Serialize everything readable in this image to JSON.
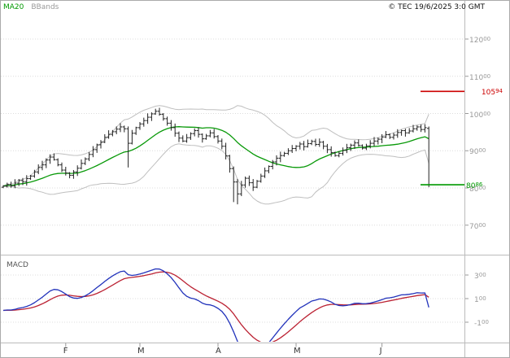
{
  "header": {
    "legend": [
      {
        "label": "MA20",
        "color": "#009900"
      },
      {
        "label": "BBands",
        "color": "#999999"
      }
    ],
    "copyright": "© TEC 19/6/2025 3:0 GMT"
  },
  "chart_data": [
    {
      "type": "candlestick",
      "title": "",
      "ylabel": "price",
      "ylim": [
        68,
        124
      ],
      "grid": true,
      "y_axis_labels": [
        {
          "main": "120",
          "sup": "00",
          "value": 120
        },
        {
          "main": "110",
          "sup": "00",
          "value": 110
        },
        {
          "main": "100",
          "sup": "00",
          "value": 100
        },
        {
          "main": "90",
          "sup": "00",
          "value": 90
        },
        {
          "main": "80",
          "sup": "00",
          "value": 80
        },
        {
          "main": "70",
          "sup": "00",
          "value": 70
        }
      ],
      "x_ticks": [
        {
          "label": "F",
          "index": 16
        },
        {
          "label": "M",
          "index": 35
        },
        {
          "label": "A",
          "index": 55
        },
        {
          "label": "M",
          "index": 75
        },
        {
          "label": "J",
          "index": 97
        }
      ],
      "closes": [
        80.5,
        80.9,
        80.6,
        81.3,
        82.0,
        81.7,
        82.5,
        83.2,
        84.3,
        85.5,
        86.2,
        87.5,
        88.3,
        87.6,
        86.2,
        84.8,
        84.0,
        83.4,
        84.3,
        85.3,
        86.6,
        87.8,
        89.0,
        90.3,
        91.6,
        92.3,
        93.6,
        94.4,
        95.1,
        95.8,
        96.4,
        95.9,
        92.0,
        94.7,
        96.2,
        97.2,
        98.1,
        99.0,
        99.9,
        100.6,
        99.8,
        98.6,
        97.4,
        96.2,
        94.7,
        93.4,
        92.6,
        93.5,
        94.6,
        95.4,
        94.4,
        93.2,
        94.0,
        94.8,
        93.8,
        92.6,
        91.2,
        88.6,
        85.2,
        81.6,
        78.4,
        80.8,
        82.6,
        81.4,
        80.2,
        81.8,
        83.2,
        84.6,
        85.8,
        87.0,
        88.0,
        88.7,
        89.3,
        90.0,
        90.6,
        91.2,
        91.8,
        91.1,
        91.9,
        92.5,
        91.7,
        92.3,
        91.2,
        90.3,
        89.5,
        88.7,
        89.3,
        90.1,
        90.8,
        91.5,
        92.1,
        91.4,
        90.7,
        91.3,
        92.0,
        92.6,
        93.1,
        93.7,
        94.3,
        93.6,
        94.2,
        94.9,
        95.4,
        94.8,
        95.3,
        95.9,
        96.4,
        95.7,
        96.2,
        80.86
      ],
      "overrides": {
        "32": {
          "low": 85.5
        },
        "59": {
          "low": 76.2
        },
        "60": {
          "low": 75.6
        },
        "109": {
          "open": 96.0,
          "high": 96.5,
          "low": 80.2
        }
      },
      "overlays": [
        {
          "name": "MA20",
          "type": "sma",
          "period": 20,
          "color": "#089908"
        },
        {
          "name": "BBands",
          "type": "bollinger",
          "period": 20,
          "stddev": 2,
          "color": "#bfbfbf"
        }
      ],
      "levels": [
        {
          "name": "resistance-level",
          "value": 105.94,
          "color": "#cc0000",
          "label_main": "105",
          "label_sup": "94",
          "align": "right"
        },
        {
          "name": "last-price-level",
          "value": 80.86,
          "color": "#009900",
          "label_main": "80",
          "label_sup": "86",
          "align": "left"
        }
      ],
      "candle_color": "#222222"
    },
    {
      "type": "line",
      "title": "MACD",
      "grid": true,
      "y_axis_labels": [
        {
          "main": "3",
          "sup": "00",
          "value": 3
        },
        {
          "main": "1",
          "sup": "00",
          "value": 1
        },
        {
          "main": "-1",
          "sup": "00",
          "value": -1
        }
      ],
      "series": [
        {
          "name": "MACD",
          "source": "ema12-ema26",
          "color": "#2233bb"
        },
        {
          "name": "signal",
          "source": "ema9-of-macd",
          "color": "#bb2233"
        }
      ]
    }
  ]
}
